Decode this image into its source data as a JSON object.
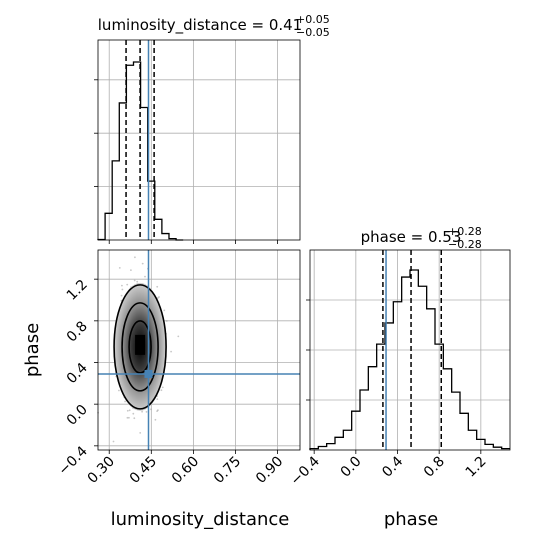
{
  "chart_data": {
    "type": "corner",
    "parameters": [
      "luminosity_distance",
      "phase"
    ],
    "truth": {
      "luminosity_distance": 0.44,
      "phase": 0.29
    },
    "colors": {
      "truth": "#4682b4",
      "hist": "#000000",
      "grid": "#b0b0b0"
    },
    "luminosity_distance": {
      "title": {
        "prefix": "luminosity_distance = ",
        "median": "0.41",
        "upper": "+0.05",
        "lower": "−0.05"
      },
      "xlabel": "luminosity_distance",
      "range": [
        0.26,
        0.98
      ],
      "ticks": [
        0.3,
        0.45,
        0.6,
        0.75,
        0.9
      ],
      "tick_labels": [
        "0.30",
        "0.45",
        "0.60",
        "0.75",
        "0.90"
      ],
      "quantiles": [
        0.36,
        0.41,
        0.46
      ],
      "hist_bins": [
        0.26,
        0.2853,
        0.3106,
        0.3359,
        0.3612,
        0.3865,
        0.4118,
        0.4371,
        0.4624,
        0.4877,
        0.513,
        0.5383,
        0.5636
      ],
      "hist_counts": [
        1,
        58,
        172,
        298,
        380,
        387,
        288,
        128,
        45,
        14,
        3,
        0
      ]
    },
    "phase": {
      "title": {
        "prefix": "phase = ",
        "median": "0.53",
        "upper": "+0.28",
        "lower": "−0.28"
      },
      "xlabel": "phase",
      "ylabel": "phase",
      "range": [
        -0.44,
        1.48
      ],
      "ticks": [
        -0.4,
        0.0,
        0.4,
        0.8,
        1.2
      ],
      "tick_labels": [
        "−0.4",
        "0.0",
        "0.4",
        "0.8",
        "1.2"
      ],
      "quantiles": [
        0.26,
        0.53,
        0.82
      ],
      "hist_bins": [
        -0.44,
        -0.36,
        -0.28,
        -0.2,
        -0.12,
        -0.04,
        0.04,
        0.12,
        0.2,
        0.28,
        0.36,
        0.44,
        0.52,
        0.6,
        0.68,
        0.76,
        0.84,
        0.92,
        1.0,
        1.08,
        1.16,
        1.24,
        1.32,
        1.4,
        1.48
      ],
      "hist_counts": [
        2,
        5,
        9,
        18,
        28,
        55,
        85,
        118,
        150,
        180,
        210,
        245,
        255,
        232,
        200,
        150,
        115,
        82,
        52,
        28,
        15,
        8,
        4,
        2
      ]
    },
    "joint": {
      "density_peak": {
        "luminosity_distance": 0.41,
        "phase": 0.55
      },
      "contour_levels": [
        "inner",
        "middle",
        "outer"
      ]
    }
  }
}
